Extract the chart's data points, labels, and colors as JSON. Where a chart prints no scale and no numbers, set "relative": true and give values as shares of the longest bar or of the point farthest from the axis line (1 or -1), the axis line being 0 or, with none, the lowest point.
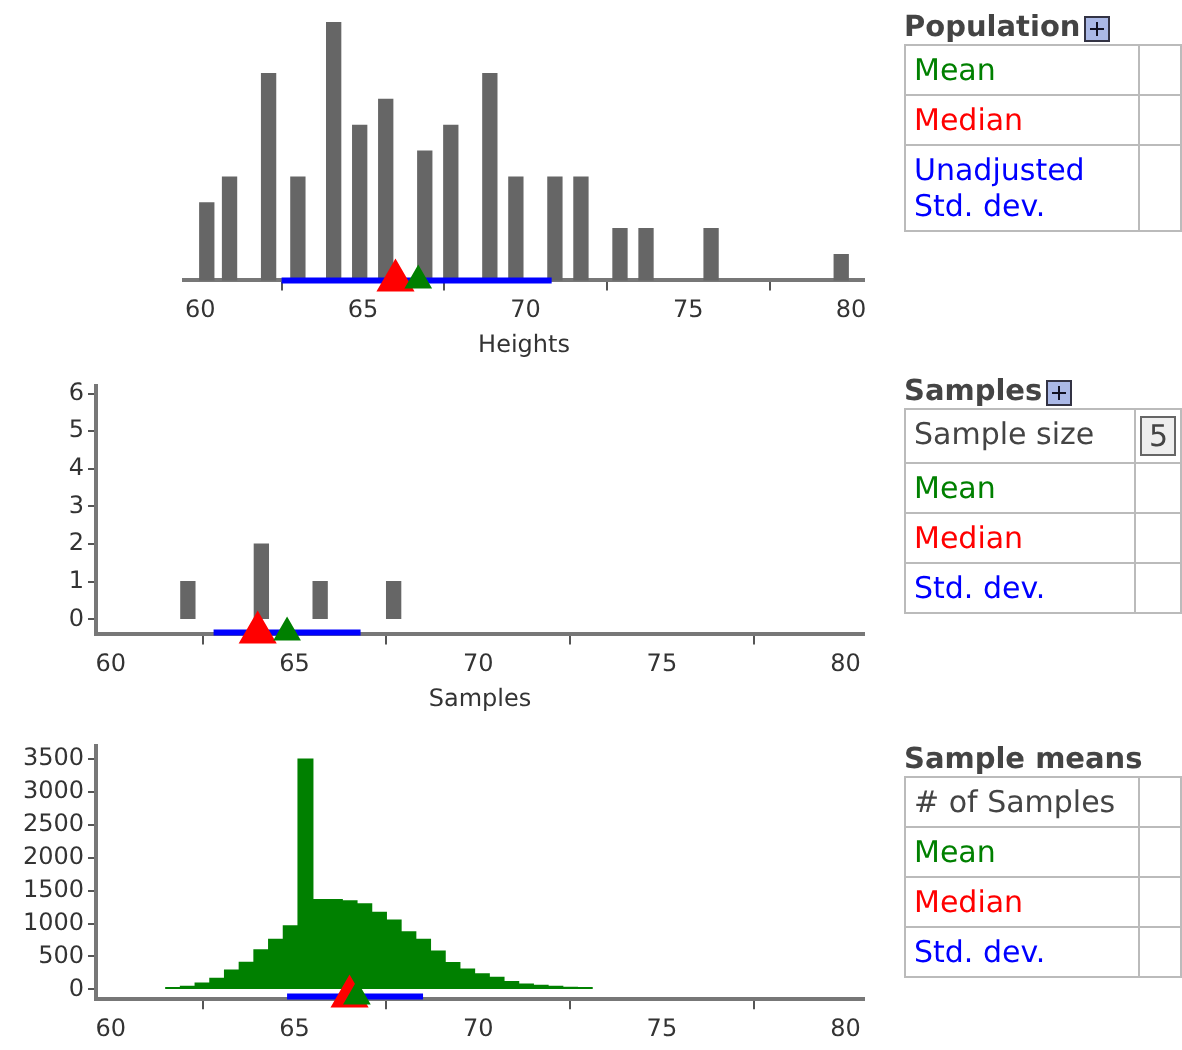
{
  "chart_data": [
    {
      "type": "bar",
      "relative": true,
      "xlabel": "Heights",
      "xlim": [
        59.5,
        80.4
      ],
      "xticks": [
        60,
        65,
        70,
        75,
        80
      ],
      "grid": false,
      "legend": false,
      "series": [
        {
          "type": "bar",
          "color": "#666666",
          "x": [
            60.2,
            60.9,
            62.1,
            63.0,
            64.1,
            64.9,
            65.7,
            66.9,
            67.7,
            68.9,
            69.7,
            70.9,
            71.7,
            72.9,
            73.7,
            75.7,
            79.7
          ],
          "values": [
            0.3,
            0.4,
            0.8,
            0.4,
            1,
            0.6,
            0.7,
            0.5,
            0.6,
            0.8,
            0.4,
            0.4,
            0.4,
            0.2,
            0.2,
            0.2,
            0.1
          ]
        },
        {
          "type": "line",
          "color": "#0000ff",
          "x": [
            62.5,
            70.8
          ],
          "values": [
            0,
            0
          ]
        },
        {
          "type": "scatter",
          "marker": "triangle",
          "color": "#ff0000",
          "x": [
            66.0
          ],
          "values": [
            0
          ]
        },
        {
          "type": "scatter",
          "marker": "triangle",
          "color": "#008000",
          "x": [
            66.7
          ],
          "values": [
            0
          ]
        }
      ]
    },
    {
      "type": "bar",
      "xlabel": "Samples",
      "xlim": [
        59.6,
        80.5
      ],
      "xticks": [
        60,
        65,
        70,
        75,
        80
      ],
      "ylim": [
        -0.4,
        6.2
      ],
      "yticks": [
        0,
        1,
        2,
        3,
        4,
        5,
        6
      ],
      "grid": false,
      "legend": false,
      "series": [
        {
          "type": "bar",
          "color": "#666666",
          "x": [
            62.1,
            64.1,
            65.7,
            67.7
          ],
          "values": [
            1,
            2,
            1,
            1
          ]
        },
        {
          "type": "line",
          "color": "#0000ff",
          "x": [
            62.8,
            66.8
          ],
          "values": [
            -0.35,
            -0.35
          ]
        },
        {
          "type": "scatter",
          "marker": "triangle",
          "color": "#ff0000",
          "x": [
            64.0
          ],
          "values": [
            -0.35
          ]
        },
        {
          "type": "scatter",
          "marker": "triangle",
          "color": "#008000",
          "x": [
            64.8
          ],
          "values": [
            -0.35
          ]
        }
      ]
    },
    {
      "type": "histogram",
      "color": "#008000",
      "xlim": [
        59.6,
        80.5
      ],
      "xticks": [
        60,
        65,
        70,
        75,
        80
      ],
      "ylim": [
        -150,
        3700
      ],
      "yticks": [
        0,
        500,
        1000,
        1500,
        2000,
        2500,
        3000,
        3500
      ],
      "grid": false,
      "legend": false,
      "bins": [
        61.5,
        61.9,
        62.3,
        62.7,
        63.1,
        63.5,
        63.9,
        64.3,
        64.7,
        65.1,
        65.5,
        65.9,
        66.3,
        66.7,
        67.1,
        67.5,
        67.9,
        68.3,
        68.7,
        69.1,
        69.5,
        69.9,
        70.3,
        70.7,
        71.1,
        71.5,
        71.9,
        72.3,
        72.7,
        73.1
      ],
      "values": [
        25,
        45,
        95,
        165,
        290,
        410,
        600,
        760,
        965,
        3500,
        1365,
        1365,
        1345,
        1300,
        1170,
        1050,
        875,
        760,
        580,
        405,
        305,
        235,
        180,
        115,
        80,
        60,
        45,
        30,
        25
      ],
      "series": [
        {
          "type": "line",
          "color": "#0000ff",
          "x": [
            64.8,
            68.5
          ],
          "values": [
            -110,
            -110
          ]
        },
        {
          "type": "scatter",
          "marker": "triangle",
          "color": "#ff0000",
          "x": [
            66.5
          ],
          "values": [
            -110
          ]
        },
        {
          "type": "scatter",
          "marker": "triangle",
          "color": "#008000",
          "x": [
            66.7
          ],
          "values": [
            -110
          ]
        }
      ]
    },
    {
      "type": "other",
      "title": "Population",
      "annotations": [
        "Mean",
        "Median",
        "Unadjusted Std. dev."
      ],
      "colors": [
        "#008000",
        "#ff0000",
        "#0000ff"
      ]
    },
    {
      "type": "other",
      "title": "Samples",
      "annotations": [
        "Sample size",
        "Mean",
        "Median",
        "Std. dev."
      ],
      "values": [
        5,
        null,
        null,
        null
      ],
      "value_labels": [
        "5",
        null,
        null,
        null
      ],
      "colors": [
        "#444444",
        "#008000",
        "#ff0000",
        "#0000ff"
      ]
    },
    {
      "type": "other",
      "title": "Sample means",
      "annotations": [
        "# of Samples",
        "Mean",
        "Median",
        "Std. dev."
      ],
      "colors": [
        "#444444",
        "#008000",
        "#ff0000",
        "#0000ff"
      ]
    }
  ]
}
